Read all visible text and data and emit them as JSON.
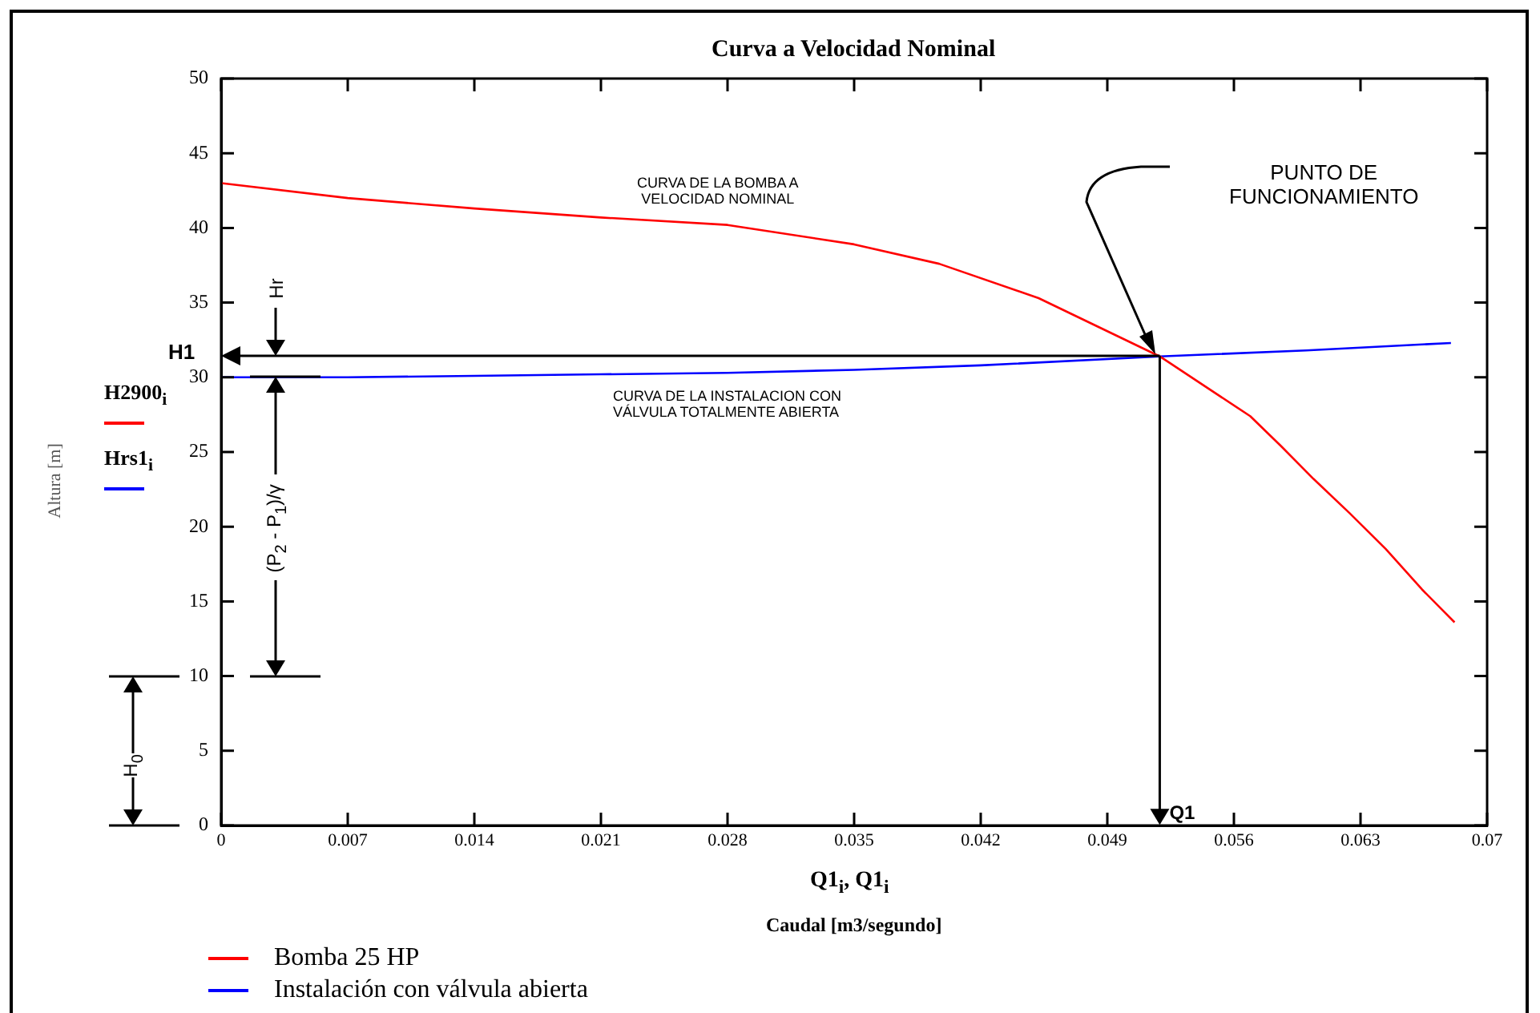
{
  "chart_data": {
    "type": "line",
    "title": "Curva a Velocidad Nominal",
    "xlabel": "Q1$_{i}$, Q1$_{i}$",
    "xlim": [
      0,
      0.07
    ],
    "xticks": [
      0,
      0.007,
      0.014,
      0.021,
      0.028,
      0.035,
      0.042,
      0.049,
      0.056,
      0.063,
      0.07
    ],
    "ylim": [
      0,
      50
    ],
    "yticks": [
      0,
      5,
      10,
      15,
      20,
      25,
      30,
      35,
      40,
      45,
      50
    ],
    "grid": false,
    "legend": "bottom left",
    "marker": "none",
    "line_style": "solid",
    "series": [
      {
        "name": "Bomba 25 HP",
        "color": "#ff0000",
        "x": [
          0,
          0.007,
          0.014,
          0.021,
          0.028,
          0.035,
          0.0397,
          0.0452,
          0.0519,
          0.0569,
          0.0586,
          0.0604,
          0.0624,
          0.0644,
          0.0664,
          0.0682
        ],
        "values": [
          43,
          42,
          41.3,
          40.7,
          40.2,
          38.9,
          37.6,
          35.3,
          31.4,
          27.4,
          25.4,
          23.2,
          20.9,
          18.5,
          15.8,
          13.6
        ]
      },
      {
        "name": "Instalación con válvula abierta",
        "color": "#0000ff",
        "x": [
          0,
          0.007,
          0.014,
          0.021,
          0.028,
          0.035,
          0.042,
          0.0519,
          0.06,
          0.068
        ],
        "values": [
          30,
          30,
          30.1,
          30.2,
          30.3,
          30.5,
          30.8,
          31.4,
          31.8,
          32.3
        ]
      }
    ],
    "annotations": [
      "CURVA DE LA BOMBA A\nVELOCIDAD NOMINAL",
      "CURVA DE LA INSTALACION CON\nVÁLVULA TOTALMENTE ABIERTA",
      "PUNTO DE\nFUNCIONAMIENTO",
      "H1",
      {
        "text": "Q1",
        "x": 0.0519,
        "y": 31.4
      },
      "Hr",
      "(P$_{2}$ - P$_{1}$)/γ",
      "H$_{0}$",
      "H2900$_{i}$",
      "Hrs1$_{i}$",
      "Caudal [m3/segundo]",
      "Altura [m]"
    ]
  }
}
